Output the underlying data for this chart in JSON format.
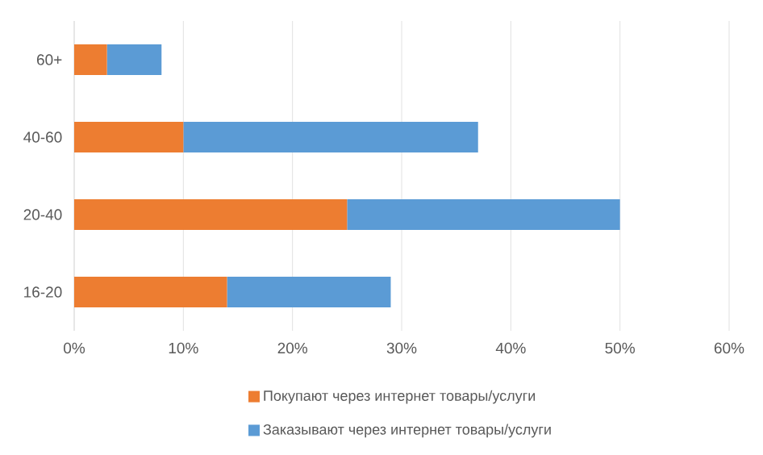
{
  "chart_data": {
    "type": "bar",
    "orientation": "horizontal",
    "stacked": true,
    "categories": [
      "60+",
      "40-60",
      "20-40",
      "16-20"
    ],
    "series": [
      {
        "name": "Покупают через интернет товары/услуги",
        "color": "#ed7d31",
        "values": [
          3,
          10,
          25,
          14
        ]
      },
      {
        "name": "Заказывают через интернет товары/услуги",
        "color": "#5b9bd5",
        "values": [
          5,
          27,
          25,
          15
        ]
      }
    ],
    "xlim": [
      0,
      60
    ],
    "xticks": [
      {
        "value": 0,
        "label": "0%"
      },
      {
        "value": 10,
        "label": "10%"
      },
      {
        "value": 20,
        "label": "20%"
      },
      {
        "value": 30,
        "label": "30%"
      },
      {
        "value": 40,
        "label": "40%"
      },
      {
        "value": 50,
        "label": "50%"
      },
      {
        "value": 60,
        "label": "60%"
      }
    ],
    "grid": "x",
    "legend": "bottom"
  }
}
